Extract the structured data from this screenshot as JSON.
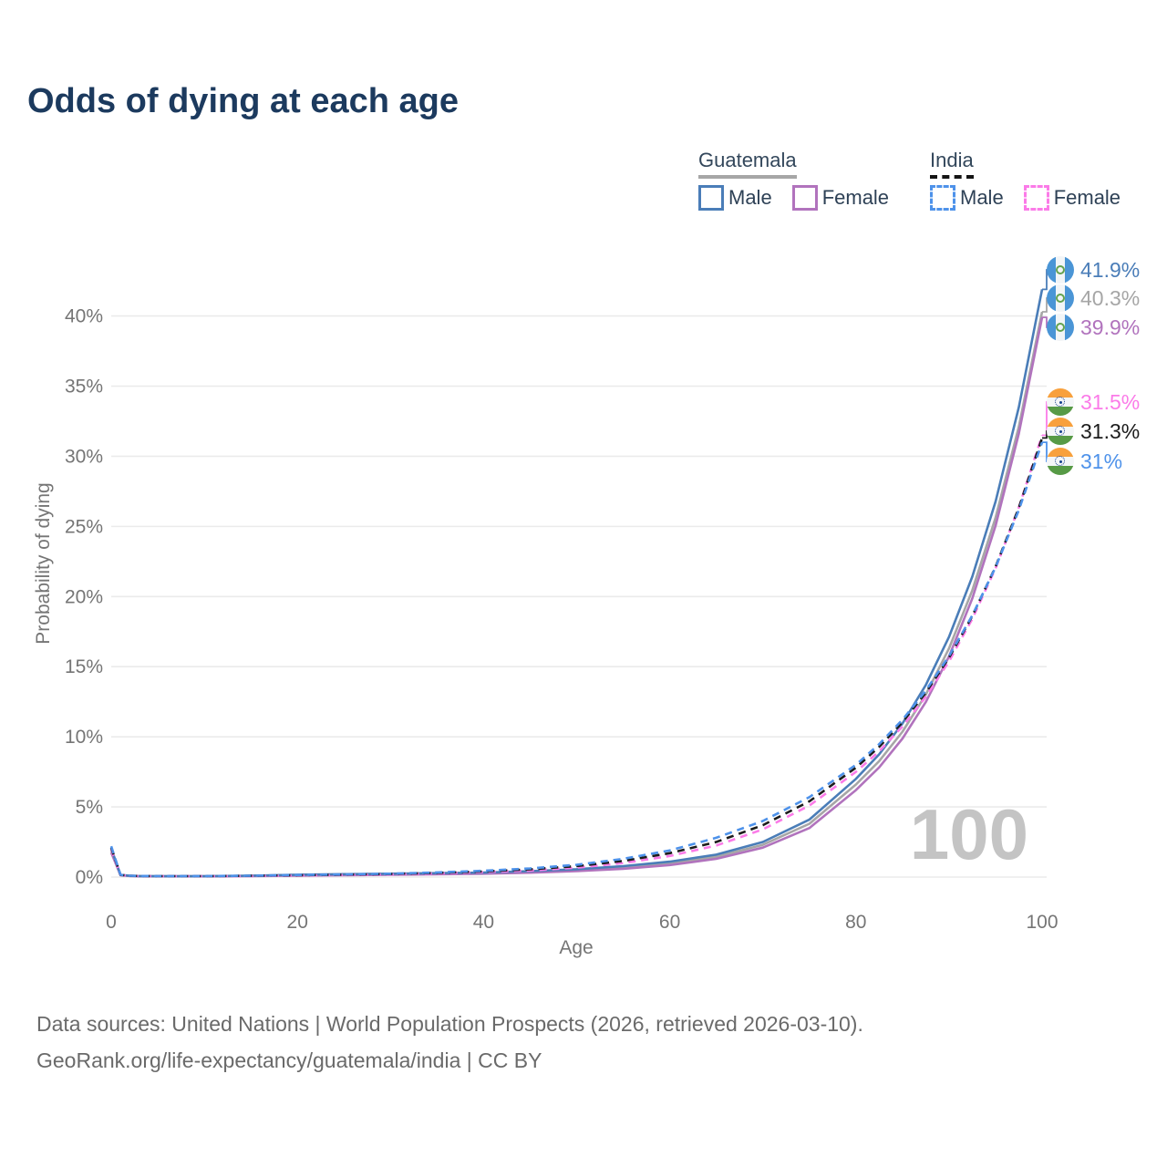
{
  "title": "Odds of dying at each age",
  "watermark": "100",
  "legend": {
    "groups": [
      {
        "country": "Guatemala",
        "line_style": "solid",
        "underline_color": "#a6a6a6",
        "items": [
          {
            "label": "Male",
            "color": "#4a7db8"
          },
          {
            "label": "Female",
            "color": "#b173bd"
          }
        ]
      },
      {
        "country": "India",
        "line_style": "dashed",
        "underline_color": "#141414",
        "items": [
          {
            "label": "Male",
            "color": "#4e92ea"
          },
          {
            "label": "Female",
            "color": "#fb7be8"
          }
        ]
      }
    ]
  },
  "source_lines": [
    "Data sources: United Nations | World Population Prospects (2026, retrieved 2026-03-10).",
    "GeoRank.org/life-expectancy/guatemala/india | CC BY"
  ],
  "chart_data": {
    "type": "line",
    "title": "Odds of dying at each age",
    "xlabel": "Age",
    "ylabel": "Probability of dying",
    "x_ticks": [
      0,
      20,
      40,
      60,
      80,
      100
    ],
    "y_tick_labels": [
      "0%",
      "5%",
      "10%",
      "15%",
      "20%",
      "25%",
      "30%",
      "35%",
      "40%"
    ],
    "y_tick_values": [
      0,
      5,
      10,
      15,
      20,
      25,
      30,
      35,
      40
    ],
    "xlim": [
      0,
      100
    ],
    "ylim": [
      0,
      43.5
    ],
    "grid": "horizontal",
    "legend_position": "top-right",
    "x": [
      0,
      1,
      2,
      3,
      5,
      10,
      15,
      20,
      25,
      30,
      35,
      40,
      45,
      50,
      55,
      60,
      65,
      70,
      75,
      80,
      82.5,
      85,
      87.5,
      90,
      92.5,
      95,
      97.5,
      100
    ],
    "series": [
      {
        "name": "Guatemala Both sexes",
        "key": "gt-total",
        "color": "#a6a6a6",
        "dash": false,
        "flag": "guatemala",
        "end_label": "40.3%",
        "values": [
          1.9,
          0.14,
          0.08,
          0.065,
          0.055,
          0.055,
          0.09,
          0.14,
          0.17,
          0.2,
          0.24,
          0.28,
          0.36,
          0.49,
          0.68,
          0.97,
          1.45,
          2.3,
          3.8,
          6.6,
          8.27,
          10.37,
          13.0,
          16.3,
          20.43,
          25.62,
          32.11,
          40.3
        ]
      },
      {
        "name": "Guatemala Female",
        "key": "gt-female",
        "color": "#b173bd",
        "dash": false,
        "flag": "guatemala",
        "end_label": "39.9%",
        "values": [
          1.75,
          0.13,
          0.075,
          0.06,
          0.05,
          0.05,
          0.07,
          0.1,
          0.13,
          0.16,
          0.2,
          0.24,
          0.31,
          0.42,
          0.59,
          0.86,
          1.3,
          2.1,
          3.5,
          6.2,
          7.82,
          9.88,
          12.47,
          15.73,
          19.86,
          25.06,
          31.63,
          39.9
        ]
      },
      {
        "name": "Guatemala Male",
        "key": "gt-male",
        "color": "#4a7db8",
        "dash": false,
        "flag": "guatemala",
        "end_label": "41.9%",
        "values": [
          2.05,
          0.15,
          0.09,
          0.07,
          0.06,
          0.06,
          0.1,
          0.17,
          0.21,
          0.24,
          0.28,
          0.32,
          0.42,
          0.56,
          0.78,
          1.1,
          1.6,
          2.5,
          4.1,
          7.0,
          8.75,
          10.95,
          13.69,
          17.12,
          21.41,
          26.78,
          33.5,
          41.9
        ]
      },
      {
        "name": "India Female",
        "key": "in-female",
        "color": "#fb7be8",
        "dash": true,
        "flag": "india",
        "end_label": "31.5%",
        "values": [
          2.0,
          0.14,
          0.085,
          0.07,
          0.06,
          0.06,
          0.08,
          0.11,
          0.15,
          0.19,
          0.26,
          0.35,
          0.47,
          0.67,
          1.0,
          1.5,
          2.25,
          3.4,
          5.1,
          7.5,
          8.97,
          10.74,
          12.85,
          15.38,
          18.4,
          22.02,
          26.35,
          31.5
        ]
      },
      {
        "name": "India Both sexes",
        "key": "in-total",
        "color": "#1c1c1c",
        "dash": true,
        "flag": "india",
        "end_label": "31.3%",
        "values": [
          2.1,
          0.15,
          0.09,
          0.075,
          0.065,
          0.065,
          0.09,
          0.13,
          0.17,
          0.22,
          0.3,
          0.4,
          0.55,
          0.78,
          1.15,
          1.7,
          2.5,
          3.7,
          5.4,
          7.8,
          9.28,
          11.04,
          13.14,
          15.63,
          18.6,
          22.13,
          26.33,
          31.3
        ]
      },
      {
        "name": "India Male",
        "key": "in-male",
        "color": "#4e92ea",
        "dash": true,
        "flag": "india",
        "end_label": "31%",
        "values": [
          2.2,
          0.16,
          0.1,
          0.08,
          0.07,
          0.07,
          0.1,
          0.15,
          0.19,
          0.24,
          0.33,
          0.45,
          0.62,
          0.88,
          1.3,
          1.9,
          2.8,
          4.0,
          5.7,
          8.0,
          9.48,
          11.22,
          13.29,
          15.75,
          18.65,
          22.09,
          26.17,
          31.0
        ]
      }
    ]
  }
}
